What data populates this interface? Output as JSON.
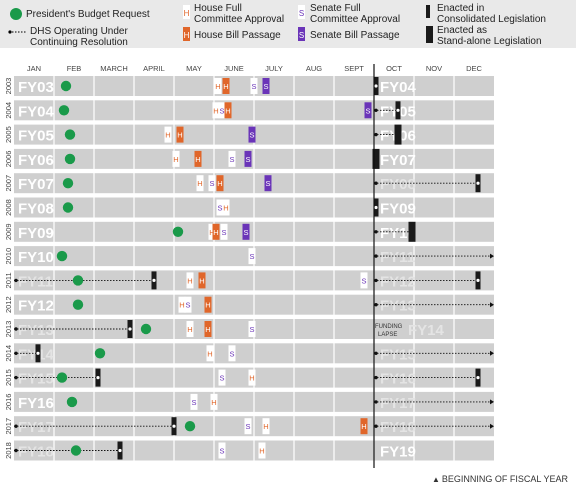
{
  "legend": {
    "budget_request": "President's Budget Request",
    "cr_line1": "DHS Operating Under",
    "cr_line2": "Continuing Resolution",
    "house_committee_line1": "House Full",
    "house_committee_line2": "Committee Approval",
    "house_passage": "House Bill Passage",
    "senate_committee_line1": "Senate Full",
    "senate_committee_line2": "Committee Approval",
    "senate_passage": "Senate Bill Passage",
    "enacted_consolidated_line1": "Enacted in",
    "enacted_consolidated_line2": "Consolidated Legislation",
    "enacted_standalone_line1": "Enacted as",
    "enacted_standalone_line2": "Stand-alone Legislation",
    "marker_h": "H",
    "marker_s": "S"
  },
  "footnote": "BEGINNING OF FISCAL YEAR",
  "funding_lapse_line1": "FUNDING",
  "funding_lapse_line2": "LAPSE",
  "colors": {
    "budget": "#1a9a4a",
    "house_passage": "#e0662a",
    "senate_passage": "#6a34b8",
    "enacted": "#1a1a1a",
    "row_bg": "#cfcfcf",
    "label_current": "#ffffff",
    "label_faint": "#e4e4e4"
  },
  "chart_data": {
    "type": "timeline",
    "months": [
      "JAN",
      "FEB",
      "MARCH",
      "APRIL",
      "MAY",
      "JUNE",
      "JULY",
      "AUG",
      "SEPT",
      "OCT",
      "NOV",
      "DEC"
    ],
    "rows": [
      {
        "year": "2003",
        "label_prev": "FY03",
        "label_next": "FY04",
        "budget": 1.3,
        "events": [
          {
            "t": "hc",
            "m": 5.1
          },
          {
            "t": "hp",
            "m": 5.3
          },
          {
            "t": "sc",
            "m": 6.0
          },
          {
            "t": "sp",
            "m": 6.3
          }
        ],
        "enacted": {
          "kind": "cons",
          "m": 9.05
        },
        "cr": null
      },
      {
        "year": "2004",
        "label_prev": "FY04",
        "label_next": "FY05",
        "budget": 1.25,
        "events": [
          {
            "t": "hc",
            "m": 5.05
          },
          {
            "t": "sc",
            "m": 5.2
          },
          {
            "t": "hp",
            "m": 5.35
          },
          {
            "t": "sp",
            "m": 8.85
          }
        ],
        "enacted": {
          "kind": "cons",
          "m": 9.6
        },
        "cr": [
          9.0,
          9.6
        ]
      },
      {
        "year": "2005",
        "label_prev": "FY05",
        "label_next": "FY06",
        "budget": 1.4,
        "events": [
          {
            "t": "hc",
            "m": 3.85
          },
          {
            "t": "hp",
            "m": 4.15
          },
          {
            "t": "sc",
            "m": 5.95
          },
          {
            "t": "sp",
            "m": 5.95
          }
        ],
        "enacted": {
          "kind": "stand",
          "m": 9.6
        },
        "cr": [
          9.0,
          9.6
        ]
      },
      {
        "year": "2006",
        "label_prev": "FY06",
        "label_next": "FY07",
        "budget": 1.4,
        "events": [
          {
            "t": "hc",
            "m": 4.05
          },
          {
            "t": "hp",
            "m": 4.6
          },
          {
            "t": "sc",
            "m": 5.45
          },
          {
            "t": "sp",
            "m": 5.85
          }
        ],
        "enacted": {
          "kind": "stand",
          "m": 9.05
        },
        "cr": null
      },
      {
        "year": "2007",
        "label_prev": "FY07",
        "label_next": "FY08",
        "budget": 1.35,
        "events": [
          {
            "t": "hc",
            "m": 4.65
          },
          {
            "t": "sc",
            "m": 4.95
          },
          {
            "t": "hp",
            "m": 5.15
          },
          {
            "t": "sp",
            "m": 6.35
          }
        ],
        "enacted": {
          "kind": "cons",
          "m": 11.6
        },
        "cr": [
          9.0,
          11.6
        ]
      },
      {
        "year": "2008",
        "label_prev": "FY08",
        "label_next": "FY09",
        "budget": 1.35,
        "events": [
          {
            "t": "sc",
            "m": 5.15
          },
          {
            "t": "hc",
            "m": 5.3
          }
        ],
        "enacted": {
          "kind": "cons",
          "m": 9.05
        },
        "cr": null
      },
      {
        "year": "2009",
        "label_prev": "FY09",
        "label_next": "FY10",
        "budget": 4.1,
        "events": [
          {
            "t": "hc",
            "m": 4.95
          },
          {
            "t": "hp",
            "m": 5.05
          },
          {
            "t": "sc",
            "m": 5.25
          },
          {
            "t": "sp",
            "m": 5.8
          }
        ],
        "enacted": {
          "kind": "stand",
          "m": 9.95
        },
        "cr": [
          9.0,
          9.95
        ]
      },
      {
        "year": "2010",
        "label_prev": "FY10",
        "label_next": "FY11",
        "budget": 1.2,
        "events": [
          {
            "t": "sc",
            "m": 5.95
          }
        ],
        "enacted": null,
        "cr": [
          9.0,
          12.0
        ]
      },
      {
        "year": "2011",
        "label_prev": "FY11",
        "label_next": "FY12",
        "budget": 1.6,
        "events": [
          {
            "t": "hc",
            "m": 4.4
          },
          {
            "t": "hp",
            "m": 4.7
          },
          {
            "t": "sc",
            "m": 8.75
          }
        ],
        "enacted": {
          "kind": "cons",
          "m": 11.6
        },
        "cr": [
          9.0,
          11.6
        ],
        "prev_enacted": 3.5,
        "prev_cr": [
          0.0,
          3.5
        ]
      },
      {
        "year": "2012",
        "label_prev": "FY12",
        "label_next": "FY13",
        "budget": 1.6,
        "events": [
          {
            "t": "hc",
            "m": 4.2
          },
          {
            "t": "sc",
            "m": 4.35
          },
          {
            "t": "hp",
            "m": 4.85
          }
        ],
        "enacted": null,
        "cr": [
          9.0,
          12.0
        ]
      },
      {
        "year": "2013",
        "label_prev": "FY13",
        "label_next": "FY14",
        "budget": 3.3,
        "events": [
          {
            "t": "hc",
            "m": 4.4
          },
          {
            "t": "hp",
            "m": 4.85
          },
          {
            "t": "sc",
            "m": 5.95
          }
        ],
        "enacted": null,
        "cr": null,
        "prev_enacted": 2.9,
        "prev_cr": [
          0.0,
          2.9
        ],
        "lapse": true
      },
      {
        "year": "2014",
        "label_prev": "FY14",
        "label_next": "FY15",
        "budget": 2.15,
        "events": [
          {
            "t": "hc",
            "m": 4.9
          },
          {
            "t": "sc",
            "m": 5.45
          }
        ],
        "enacted": null,
        "cr": [
          9.0,
          12.0
        ],
        "prev_enacted": 0.6,
        "prev_cr": [
          0.0,
          0.6
        ]
      },
      {
        "year": "2015",
        "label_prev": "FY15",
        "label_next": "FY16",
        "budget": 1.2,
        "events": [
          {
            "t": "sc",
            "m": 5.2
          },
          {
            "t": "hc",
            "m": 5.95
          }
        ],
        "enacted": {
          "kind": "cons",
          "m": 11.6
        },
        "cr": [
          9.0,
          11.6
        ],
        "prev_enacted": 2.1,
        "prev_cr": [
          0.0,
          2.1
        ]
      },
      {
        "year": "2016",
        "label_prev": "FY16",
        "label_next": "FY17",
        "budget": 1.45,
        "events": [
          {
            "t": "sc",
            "m": 4.5
          },
          {
            "t": "hc",
            "m": 5.0
          }
        ],
        "enacted": null,
        "cr": [
          9.0,
          12.0
        ]
      },
      {
        "year": "2017",
        "label_prev": "FY17",
        "label_next": "FY18",
        "budget": 4.4,
        "events": [
          {
            "t": "sc",
            "m": 5.85
          },
          {
            "t": "hc",
            "m": 6.3
          },
          {
            "t": "hp",
            "m": 8.75
          }
        ],
        "enacted": null,
        "cr": [
          9.0,
          12.0
        ],
        "prev_enacted": 4.0,
        "prev_cr": [
          0.0,
          4.0
        ]
      },
      {
        "year": "2018",
        "label_prev": "FY18",
        "label_next": "FY19",
        "budget": 1.55,
        "events": [
          {
            "t": "sc",
            "m": 5.2
          },
          {
            "t": "hc",
            "m": 6.2
          }
        ],
        "enacted": null,
        "cr": null,
        "prev_enacted": 2.65,
        "prev_cr": [
          0.0,
          2.65
        ]
      }
    ]
  }
}
